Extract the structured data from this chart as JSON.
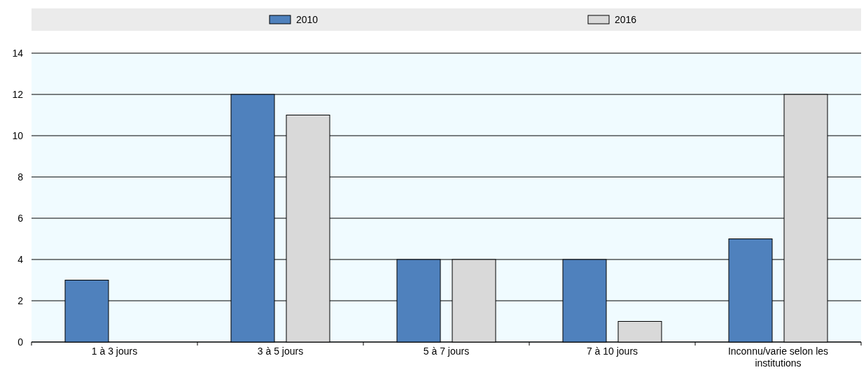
{
  "chart_data": {
    "type": "bar",
    "categories": [
      "1 à 3 jours",
      "3 à 5 jours",
      "5 à 7 jours",
      "7 à 10 jours",
      "Inconnu/varie selon les institutions"
    ],
    "series": [
      {
        "name": "2010",
        "color": "#4f81bd",
        "values": [
          3,
          12,
          4,
          4,
          5
        ]
      },
      {
        "name": "2016",
        "color": "#d9d9d9",
        "values": [
          null,
          11,
          4,
          1,
          12
        ]
      }
    ],
    "ylim": [
      0,
      14
    ],
    "yticks": [
      0,
      2,
      4,
      6,
      8,
      10,
      12,
      14
    ],
    "grid": "y",
    "legend": "top"
  }
}
